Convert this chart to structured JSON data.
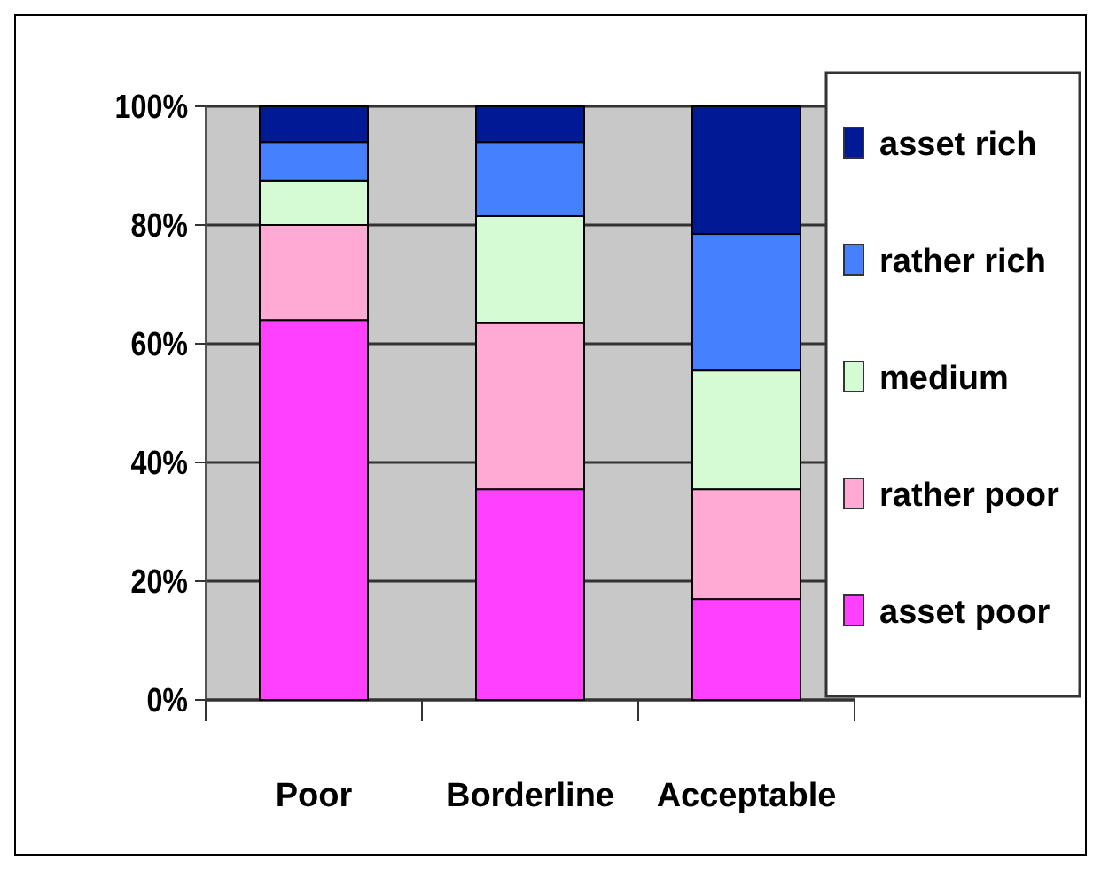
{
  "chart_data": {
    "type": "bar",
    "stacked": true,
    "categories": [
      "Poor",
      "Borderline",
      "Acceptable"
    ],
    "series": [
      {
        "name": "asset poor",
        "color": "#ff40ff",
        "values": [
          64,
          35.5,
          17
        ]
      },
      {
        "name": "rather poor",
        "color": "#ffaad5",
        "values": [
          16,
          28,
          18.5
        ]
      },
      {
        "name": "medium",
        "color": "#d5fbd5",
        "values": [
          7.5,
          18,
          20
        ]
      },
      {
        "name": "rather rich",
        "color": "#4580ff",
        "values": [
          6.5,
          12.5,
          23
        ]
      },
      {
        "name": "asset rich",
        "color": "#001a95",
        "values": [
          6,
          6,
          21.5
        ]
      }
    ],
    "ylim": [
      0,
      100
    ],
    "yticks": [
      {
        "value": 0,
        "label": "0%"
      },
      {
        "value": 20,
        "label": "20%"
      },
      {
        "value": 40,
        "label": "40%"
      },
      {
        "value": 60,
        "label": "60%"
      },
      {
        "value": 80,
        "label": "80%"
      },
      {
        "value": 100,
        "label": "100%"
      }
    ],
    "grid": "y",
    "legend": "right"
  }
}
